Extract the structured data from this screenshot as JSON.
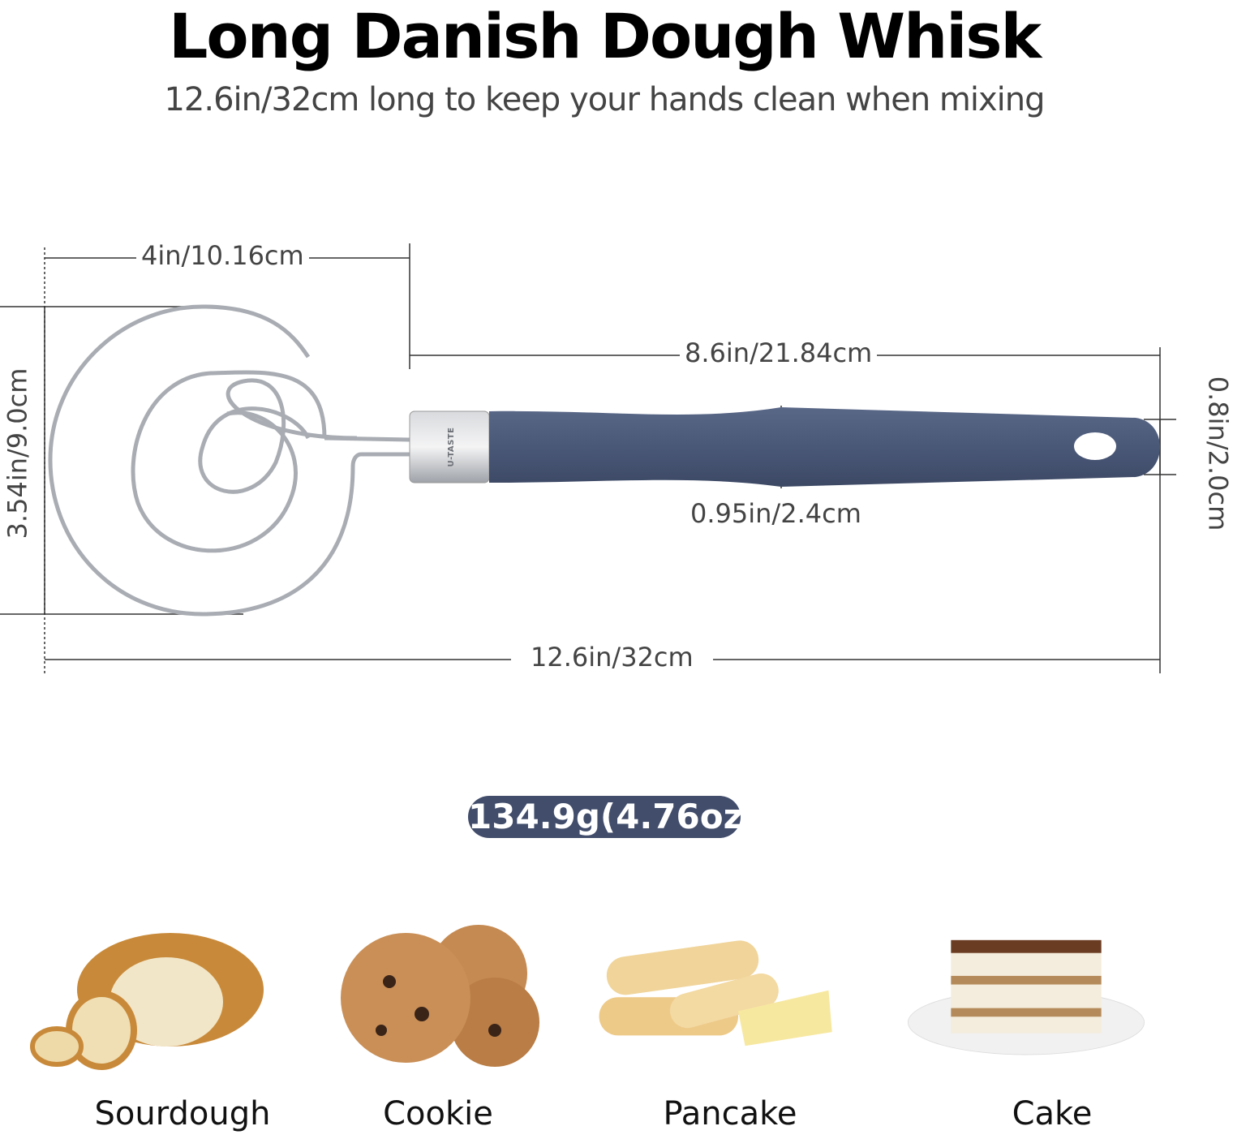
{
  "title": "Long Danish Dough Whisk",
  "subtitle": "12.6in/32cm long to keep your hands clean when mixing",
  "dimensions": {
    "head_width": "4in/10.16cm",
    "handle_length": "8.6in/21.84cm",
    "head_height": "3.54in/9.0cm",
    "handle_end_width": "0.8in/2.0cm",
    "handle_width": "0.95in/2.4cm",
    "total_length": "12.6in/32cm"
  },
  "weight": "134.9g(4.76oz)",
  "brand_on_ferrule": "U-TASTE",
  "uses": [
    {
      "label": "Sourdough"
    },
    {
      "label": "Cookie"
    },
    {
      "label": "Pancake"
    },
    {
      "label": "Cake"
    }
  ],
  "colors": {
    "handle": "#4a5878",
    "badge": "#414d6b",
    "steel": "#b8bcc2"
  }
}
